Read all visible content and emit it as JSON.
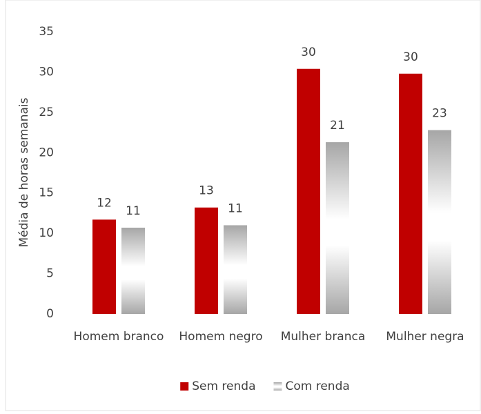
{
  "chart_data": {
    "type": "bar",
    "y_axis_label": "Média de horas semanais",
    "categories": [
      "Homem branco",
      "Homem negro",
      "Mulher branca",
      "Mulher negra"
    ],
    "series": [
      {
        "name": "Sem renda",
        "color": "#c00000",
        "values": [
          11.7,
          13.2,
          30.4,
          29.8
        ],
        "value_labels": [
          "12",
          "13",
          "30",
          "30"
        ]
      },
      {
        "name": "Com renda",
        "color": "#a6a6a6",
        "values": [
          10.7,
          11.0,
          21.3,
          22.8
        ],
        "value_labels": [
          "11",
          "11",
          "21",
          "23"
        ]
      }
    ],
    "ylim": [
      0,
      35
    ],
    "yticks": [
      0,
      5,
      10,
      15,
      20,
      25,
      30,
      35
    ],
    "grid": false,
    "legend": "bottom"
  }
}
